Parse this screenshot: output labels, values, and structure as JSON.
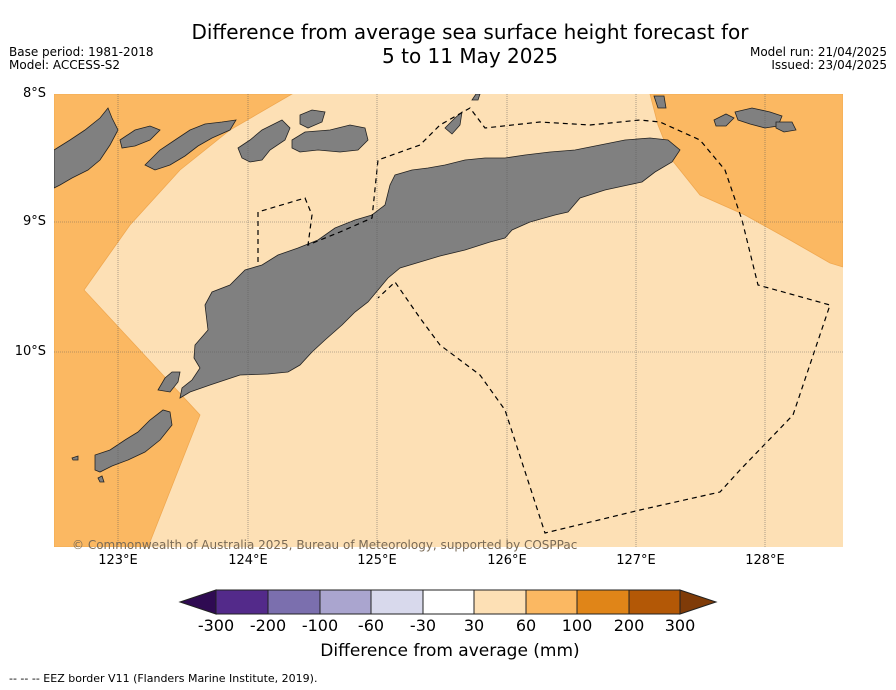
{
  "title": {
    "line1": "Difference from average sea surface height forecast for",
    "line2": "5 to 11 May 2025"
  },
  "meta": {
    "base_period": "Base period: 1981-2018",
    "model": "Model: ACCESS-S2",
    "model_run": "Model run: 21/04/2025",
    "issued": "Issued: 23/04/2025"
  },
  "map": {
    "lat_labels": [
      "8°S",
      "9°S",
      "10°S"
    ],
    "lon_labels": [
      "123°E",
      "124°E",
      "125°E",
      "126°E",
      "127°E",
      "128°E"
    ],
    "copyright": "© Commonwealth of Australia 2025, Bureau of Meteorology, supported by COSPPac",
    "colors": {
      "ocean_30_60": "#fde0b5",
      "ocean_60_100": "#fbb862",
      "land": "#808080",
      "eez_line": "#000000"
    }
  },
  "colorbar": {
    "ticks": [
      "-300",
      "-200",
      "-100",
      "-60",
      "-30",
      "30",
      "60",
      "100",
      "200",
      "300"
    ],
    "colors": [
      "#2f0b52",
      "#532a8a",
      "#7b6fae",
      "#aaa5cf",
      "#d8d9ec",
      "#ffffff",
      "#fde0b5",
      "#fbb862",
      "#e08518",
      "#b35806",
      "#7f3b08"
    ],
    "label": "Difference from average (mm)"
  },
  "footer": "--  --  -- EEZ border V11 (Flanders Marine Institute, 2019)."
}
